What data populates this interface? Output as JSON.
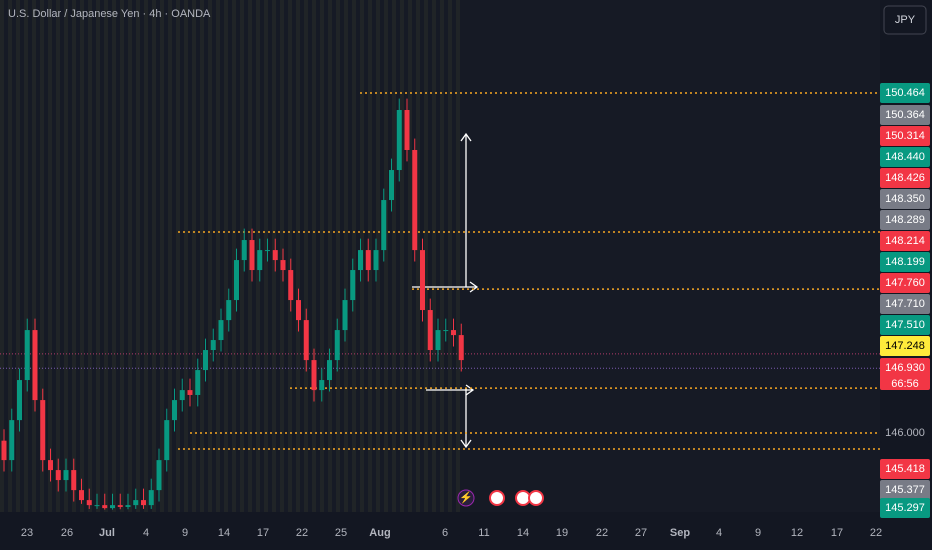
{
  "header": {
    "title": "U.S. Dollar / Japanese Yen · 4h · OANDA",
    "currency": "JPY"
  },
  "chart_data": {
    "type": "candlestick",
    "ylim": [
      144.99,
      151.685
    ],
    "up_color": "#089981",
    "down_color": "#f23645",
    "level_color": "#f5a623",
    "open": [
      145.9,
      145.645,
      146.17,
      146.696,
      147.352,
      146.433,
      145.645,
      145.514,
      145.383,
      145.514,
      145.251,
      145.12,
      145.054,
      145.054,
      145.015,
      145.054,
      145.03,
      145.054,
      145.12,
      145.054,
      145.251,
      145.645,
      146.17,
      146.433,
      146.564,
      146.5,
      146.827,
      147.09,
      147.221,
      147.483,
      147.746,
      148.271,
      148.534,
      148.14,
      148.402,
      148.402,
      148.271,
      148.14,
      147.746,
      147.483,
      146.958,
      146.564,
      146.696,
      146.958,
      147.352,
      147.746,
      148.14,
      148.402,
      148.14,
      148.402,
      149.059,
      149.453,
      150.241,
      149.716,
      148.402,
      147.615,
      147.09,
      147.352,
      147.352,
      147.286
    ],
    "high": [
      146.05,
      146.32,
      146.846,
      147.502,
      147.502,
      146.583,
      145.795,
      145.664,
      145.664,
      145.664,
      145.401,
      145.27,
      145.204,
      145.204,
      145.204,
      145.204,
      145.204,
      145.27,
      145.27,
      145.401,
      145.795,
      146.32,
      146.583,
      146.714,
      146.714,
      146.977,
      147.24,
      147.371,
      147.633,
      147.896,
      148.421,
      148.684,
      148.684,
      148.552,
      148.552,
      148.552,
      148.421,
      148.29,
      147.896,
      147.633,
      147.108,
      146.846,
      147.108,
      147.502,
      147.896,
      148.29,
      148.552,
      148.552,
      148.552,
      149.209,
      149.603,
      150.391,
      150.391,
      149.866,
      148.552,
      147.765,
      147.502,
      147.502,
      147.502,
      147.436
    ],
    "low": [
      145.495,
      145.495,
      146.02,
      146.546,
      146.283,
      145.495,
      145.364,
      145.233,
      145.233,
      145.101,
      145.07,
      145.004,
      145.004,
      144.995,
      144.995,
      145.0,
      145.0,
      145.004,
      145.004,
      145.004,
      145.101,
      145.495,
      146.02,
      146.283,
      146.35,
      146.35,
      146.677,
      146.94,
      147.071,
      147.333,
      147.596,
      148.121,
      147.99,
      147.99,
      148.252,
      148.121,
      147.99,
      147.596,
      147.333,
      146.808,
      146.414,
      146.414,
      146.546,
      146.808,
      147.202,
      147.596,
      147.99,
      147.99,
      147.99,
      148.252,
      148.909,
      149.303,
      149.566,
      148.252,
      147.465,
      146.94,
      146.94,
      147.202,
      147.136,
      146.808
    ],
    "close": [
      145.645,
      146.17,
      146.696,
      147.352,
      146.433,
      145.645,
      145.514,
      145.383,
      145.514,
      145.251,
      145.12,
      145.054,
      145.054,
      145.015,
      145.054,
      145.03,
      145.054,
      145.12,
      145.054,
      145.251,
      145.645,
      146.17,
      146.433,
      146.564,
      146.5,
      146.827,
      147.09,
      147.221,
      147.483,
      147.746,
      148.271,
      148.534,
      148.14,
      148.402,
      148.402,
      148.271,
      148.14,
      147.746,
      147.483,
      146.958,
      146.564,
      146.696,
      146.958,
      147.352,
      147.746,
      148.14,
      148.402,
      148.14,
      148.402,
      149.059,
      149.453,
      150.241,
      149.716,
      148.402,
      147.615,
      147.09,
      147.352,
      147.352,
      147.286,
      146.958
    ],
    "levels": [
      150.464,
      148.64,
      147.89,
      146.59,
      146.0,
      145.79
    ],
    "price_lines": [
      147.04,
      146.85
    ],
    "x_labels": [
      "23",
      "26",
      "Jul",
      "4",
      "9",
      "14",
      "17",
      "22",
      "25",
      "Aug",
      "6",
      "11",
      "14",
      "19",
      "22",
      "27",
      "Sep",
      "4",
      "9",
      "12",
      "17",
      "22"
    ],
    "price_labels": [
      {
        "value": 150.464,
        "color": "#089981"
      },
      {
        "value": 150.364,
        "color": "#787b86"
      },
      {
        "value": 150.314,
        "color": "#f23645"
      },
      {
        "value": {
          "value": 148.44,
          "label": "148.440"
        },
        "color": "#089981"
      },
      {
        "value": 148.426,
        "color": "#f23645"
      },
      {
        "value": {
          "value": 148.35,
          "label": "148.350"
        },
        "color": "#787b86"
      },
      {
        "value": 148.289,
        "color": "#787b86"
      },
      {
        "value": 148.214,
        "color": "#f23645"
      },
      {
        "value": 148.199,
        "color": "#089981"
      },
      {
        "value": {
          "value": 147.76,
          "label": "147.760"
        },
        "color": "#f23645"
      },
      {
        "value": {
          "value": 147.71,
          "label": "147.710"
        },
        "color": "#787b86"
      },
      {
        "value": {
          "value": 147.51,
          "label": "147.510"
        },
        "color": "#089981"
      },
      {
        "value": 147.248,
        "color": "#ffeb3b"
      },
      {
        "value": {
          "value": 146.93,
          "label": "146.930"
        },
        "color": "#f23645"
      },
      {
        "value": {
          "value": 146,
          "label": "146.000"
        },
        "color": "#131722"
      },
      {
        "value": 145.418,
        "color": "#f23645"
      },
      {
        "value": 145.377,
        "color": "#787b86"
      },
      {
        "value": 145.297,
        "color": "#089981"
      }
    ],
    "countdown": "66:56"
  }
}
